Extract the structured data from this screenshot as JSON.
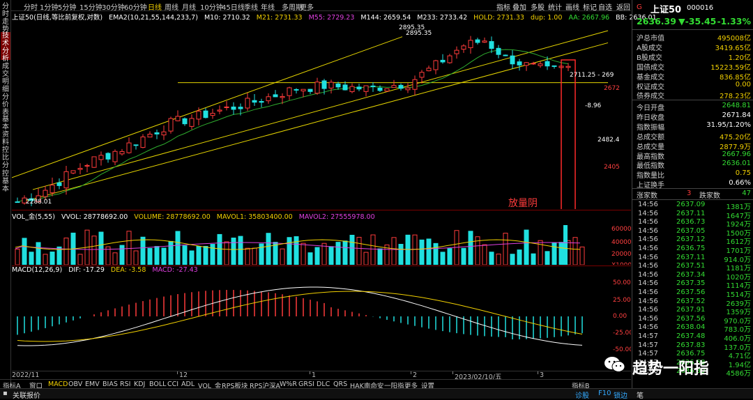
{
  "left_sidebar": [
    "分时走势",
    "技术分析",
    "成交明细",
    "分价表",
    "基本资料",
    "控比分",
    "控基本"
  ],
  "toolbar": {
    "periods": [
      "分时",
      "1分钟",
      "5分钟",
      "15分钟",
      "30分钟",
      "60分钟",
      "日线",
      "周线",
      "月线",
      "10分钟",
      "45日线",
      "季线",
      "年线",
      "多周期",
      "更多"
    ],
    "active": "日线",
    "right": [
      "指标",
      "叠加",
      "多股",
      "统计",
      "画线",
      "标记",
      "自选",
      "返回"
    ]
  },
  "indicator_row": {
    "main": "上证50(日线,等比前复权,对数)",
    "ema": "EMA2(10,21,55,144,233,7)",
    "m10": "M10: 2710.32",
    "m21": "M21: 2731.33",
    "m55": "M55: 2729.23",
    "m144": "M144: 2659.54",
    "m233": "M233: 2733.42",
    "hold": "HOLD: 2731.33",
    "dup": "dup: 1.00",
    "aa": "AA: 2667.96",
    "bb": "BB: 2636.01"
  },
  "kline_annotations": {
    "high1": "2895.35",
    "high2": "2895.35",
    "low": "2288.01",
    "last_line": "2711.25 - 269",
    "chg": "-8.96"
  },
  "price_axis": [
    "2672",
    "2482.4",
    "2405"
  ],
  "volume_row": {
    "title": "VOL_金(5,55)",
    "vvol": "VVOL: 28778692.00",
    "volume": "VOLUME: 28778692.00",
    "mavol1": "MAVOL1: 35803400.00",
    "mavol2": "MAVOL2: 27555978.00"
  },
  "volume_axis": [
    "60000",
    "40000",
    "20000",
    "X1000"
  ],
  "volume_annotation": "放量阴",
  "macd_row": {
    "title": "MACD(12,26,9)",
    "dif": "DIF: -17.29",
    "dea": "DEA: -3.58",
    "macd": "MACD: -27.43"
  },
  "macd_axis": [
    "50.00",
    "25.00",
    "0.00",
    "-25.00",
    "-50.00"
  ],
  "x_axis": [
    "2022/11",
    "12",
    "1",
    "2",
    "2023/02/10/五",
    "3"
  ],
  "bottom_tabs": [
    "指标A",
    "窗口",
    "MACD",
    "OBV",
    "EMV",
    "BIAS",
    "RSI",
    "KDJ",
    "BOLL",
    "CCI",
    "ADL",
    "VOL_金",
    "RPS板块",
    "RPS沪深A",
    "W%R",
    "GRSI",
    "DLC",
    "QRS",
    "HAK南命安",
    "一阳指",
    "更多",
    "设置"
  ],
  "bottom_tabs_active": "MACD",
  "bottom_right": "指标B",
  "status": {
    "left": "关联报价",
    "right": [
      "诊股",
      "F10",
      "锁边"
    ]
  },
  "quote": {
    "flag": "G",
    "name": "上证50",
    "code": "000016",
    "price": "2636.39",
    "change": "▼-35.45",
    "pct": "-1.33%"
  },
  "stats": [
    {
      "label": "沪总市值",
      "value": "495008亿"
    },
    {
      "label": "A股成交",
      "value": "3419.65亿"
    },
    {
      "label": "B股成交",
      "value": "1.20亿"
    },
    {
      "label": "国债成交",
      "value": "15223.59亿"
    },
    {
      "label": "基金成交",
      "value": "836.85亿"
    },
    {
      "label": "权证成交",
      "value": "0.00"
    },
    {
      "label": "债券成交",
      "value": "278.23亿"
    }
  ],
  "stats2": [
    {
      "label": "今日开盘",
      "value": "2648.81",
      "c": "grn"
    },
    {
      "label": "昨日收盘",
      "value": "2671.84",
      "c": "wht"
    },
    {
      "label": "指数振幅",
      "value": "31.95/1.20%",
      "c": "wht"
    },
    {
      "label": "总成交额",
      "value": "475.20亿",
      "c": "yel"
    },
    {
      "label": "总成交量",
      "value": "2877.9万",
      "c": "yel"
    },
    {
      "label": "最高指数",
      "value": "2667.96",
      "c": "grn"
    },
    {
      "label": "最低指数",
      "value": "2636.01",
      "c": "grn"
    },
    {
      "label": "指数量比",
      "value": "0.75",
      "c": "yel"
    },
    {
      "label": "上证换手",
      "value": "0.66%",
      "c": "wht"
    }
  ],
  "breadth": {
    "up_label": "涨家数",
    "up": "3",
    "down_label": "跌家数",
    "down": "47"
  },
  "ticks": [
    {
      "t": "14:56",
      "p": "2637.09",
      "q": "1381万"
    },
    {
      "t": "14:56",
      "p": "2637.11",
      "q": "1647万"
    },
    {
      "t": "14:56",
      "p": "2636.73",
      "q": "1924万"
    },
    {
      "t": "14:56",
      "p": "2637.05",
      "q": "1500万"
    },
    {
      "t": "14:56",
      "p": "2637.12",
      "q": "1612万"
    },
    {
      "t": "14:56",
      "p": "2636.75",
      "q": "1701万"
    },
    {
      "t": "14:56",
      "p": "2637.11",
      "q": "914.0万"
    },
    {
      "t": "14:56",
      "p": "2637.51",
      "q": "1181万"
    },
    {
      "t": "14:56",
      "p": "2637.34",
      "q": "1020万"
    },
    {
      "t": "14:56",
      "p": "2637.35",
      "q": "1114万"
    },
    {
      "t": "14:56",
      "p": "2637.56",
      "q": "1514万"
    },
    {
      "t": "14:56",
      "p": "2637.52",
      "q": "2639万"
    },
    {
      "t": "14:56",
      "p": "2637.91",
      "q": "1359万"
    },
    {
      "t": "14:56",
      "p": "2637.56",
      "q": "970.0万"
    },
    {
      "t": "14:56",
      "p": "2638.04",
      "q": "783.0万"
    },
    {
      "t": "14:57",
      "p": "2637.48",
      "q": "406.0万"
    },
    {
      "t": "14:57",
      "p": "2637.83",
      "q": "137.0万"
    },
    {
      "t": "14:57",
      "p": "2636.75",
      "q": "4.71亿"
    },
    {
      "t": "14:57",
      "p": "2636.58",
      "q": "1.94亿"
    },
    {
      "t": "15:00",
      "p": "2636.39",
      "q": "4586万"
    }
  ],
  "watermark": "趋势一阳指",
  "right_panel_tab": "笔",
  "colors": {
    "up": "#ff3b3b",
    "down": "#20e0e0",
    "ma_yellow": "#f2d000",
    "ma_green": "#2fae2f",
    "highlight_box": "#ff2a2a"
  }
}
